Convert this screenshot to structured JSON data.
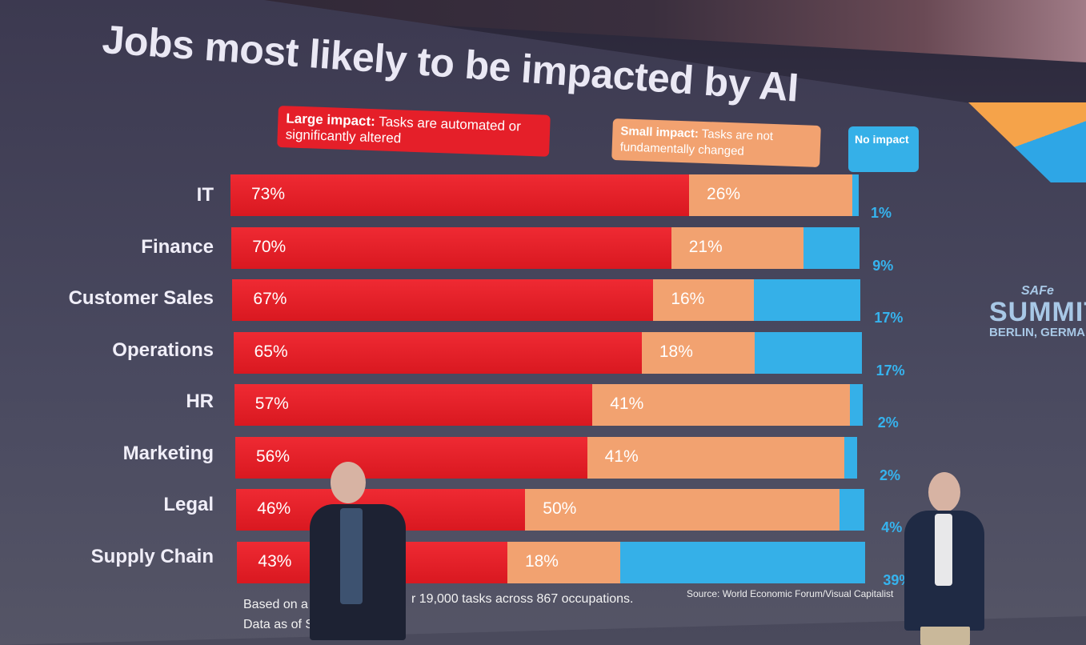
{
  "slide": {
    "title": "Jobs most likely to be impacted by AI",
    "legend": {
      "large_bold": "Large impact:",
      "large_text": " Tasks are automated or significantly altered",
      "small_bold": "Small impact:",
      "small_text": " Tasks are not fundamentally changed",
      "none": "No impact"
    },
    "footnote_line1a": "Based on a",
    "footnote_line1b": "r 19,000 tasks across 867 occupations.",
    "footnote_line2": "Data as of S",
    "source": "Source: World Economic Forum/Visual Capitalist",
    "logo": {
      "brand": "SAFe",
      "event": "SUMMIT",
      "city": "BERLIN, GERMAN"
    }
  },
  "chart_data": {
    "type": "bar",
    "stacked": true,
    "orientation": "horizontal",
    "title": "Jobs most likely to be impacted by AI",
    "categories": [
      "IT",
      "Finance",
      "Customer Sales",
      "Operations",
      "HR",
      "Marketing",
      "Legal",
      "Supply Chain"
    ],
    "series": [
      {
        "name": "Large impact",
        "color": "#e51f29",
        "values": [
          73,
          70,
          67,
          65,
          57,
          56,
          46,
          43
        ]
      },
      {
        "name": "Small impact",
        "color": "#f2a270",
        "values": [
          26,
          21,
          16,
          18,
          41,
          41,
          50,
          18
        ]
      },
      {
        "name": "No impact",
        "color": "#35b0e8",
        "values": [
          1,
          9,
          17,
          17,
          2,
          2,
          4,
          39
        ]
      }
    ],
    "unit": "%"
  }
}
